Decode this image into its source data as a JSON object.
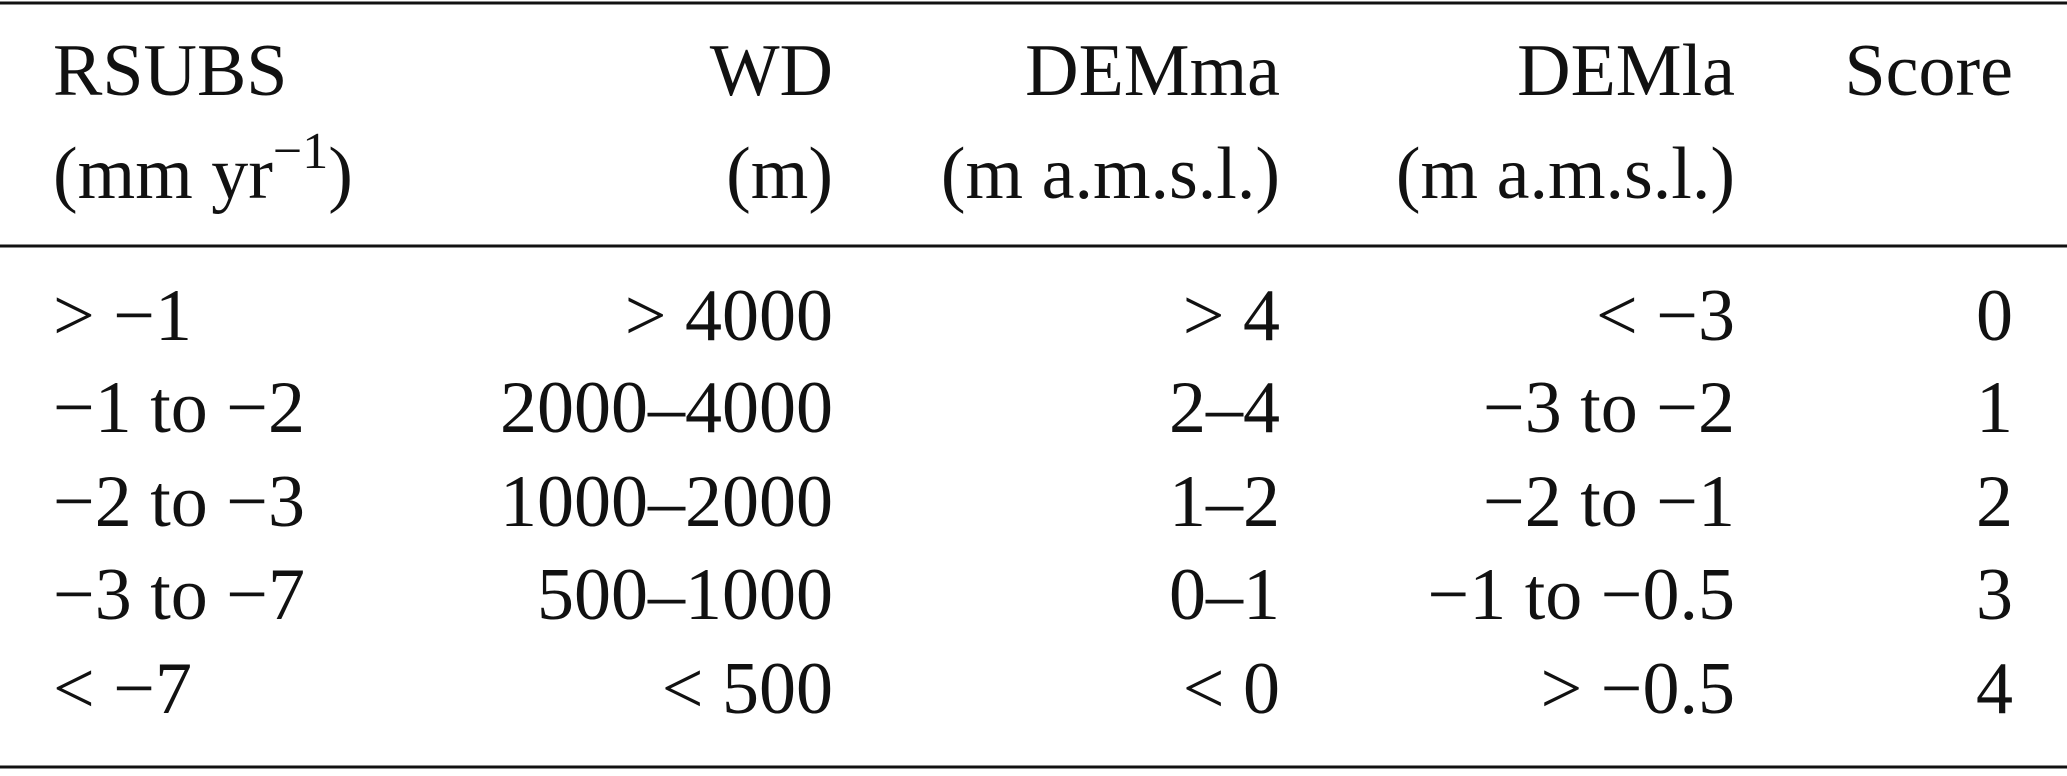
{
  "table": {
    "header": [
      {
        "name": "RSUBS",
        "unit": {
          "before": "(mm yr",
          "sup": "−1",
          "after": ")"
        }
      },
      {
        "name": "WD",
        "unit": "(m)"
      },
      {
        "name": "DEMma",
        "unit": "(m a.m.s.l.)"
      },
      {
        "name": "DEMla",
        "unit": "(m a.m.s.l.)"
      },
      {
        "name": "Score"
      }
    ],
    "rows": [
      [
        "> −1",
        "> 4000",
        "> 4",
        "< −3",
        "0"
      ],
      [
        "−1 to −2",
        "2000–4000",
        "2–4",
        "−3 to −2",
        "1"
      ],
      [
        "−2 to −3",
        "1000–2000",
        "1–2",
        "−2 to −1",
        "2"
      ],
      [
        "−3 to −7",
        "500–1000",
        "0–1",
        "−1 to −0.5",
        "3"
      ],
      [
        "< −7",
        "< 500",
        "< 0",
        "> −0.5",
        "4"
      ]
    ]
  }
}
